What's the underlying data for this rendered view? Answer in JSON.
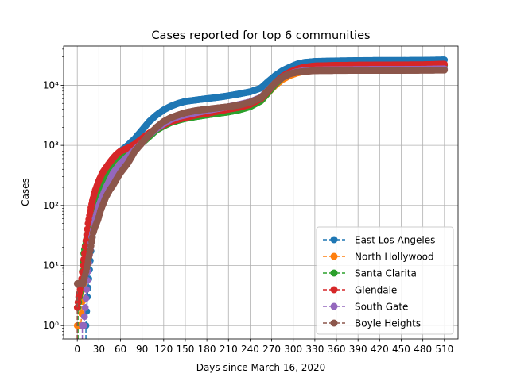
{
  "chart_data": {
    "type": "line",
    "title": "Cases reported for top 6 communities",
    "xlabel": "Days since March 16, 2020",
    "ylabel": "Cases",
    "xscale": "linear",
    "yscale": "log",
    "xlim": [
      -19,
      529
    ],
    "ylim": [
      0.6,
      45000
    ],
    "x_ticks": [
      0,
      30,
      60,
      90,
      120,
      150,
      180,
      210,
      240,
      270,
      300,
      330,
      360,
      390,
      420,
      450,
      480,
      510
    ],
    "x_tick_labels": [
      "0",
      "30",
      "60",
      "90",
      "120",
      "150",
      "180",
      "210",
      "240",
      "270",
      "300",
      "330",
      "360",
      "390",
      "420",
      "450",
      "480",
      "510"
    ],
    "y_ticks": [
      1,
      10,
      100,
      1000,
      10000
    ],
    "y_tick_labels": [
      "10⁰",
      "10¹",
      "10²",
      "10³",
      "10⁴"
    ],
    "grid": true,
    "legend_position": "lower-right",
    "series": [
      {
        "name": "East Los Angeles",
        "color": "#1f77b4",
        "start_day": 12,
        "points": [
          [
            12,
            1
          ],
          [
            14,
            3
          ],
          [
            16,
            6
          ],
          [
            18,
            12
          ],
          [
            20,
            25
          ],
          [
            25,
            60
          ],
          [
            30,
            140
          ],
          [
            40,
            350
          ],
          [
            50,
            600
          ],
          [
            60,
            800
          ],
          [
            70,
            1000
          ],
          [
            80,
            1300
          ],
          [
            90,
            1800
          ],
          [
            100,
            2500
          ],
          [
            110,
            3200
          ],
          [
            120,
            3900
          ],
          [
            130,
            4500
          ],
          [
            140,
            5000
          ],
          [
            150,
            5400
          ],
          [
            165,
            5700
          ],
          [
            180,
            6000
          ],
          [
            195,
            6300
          ],
          [
            210,
            6700
          ],
          [
            225,
            7200
          ],
          [
            240,
            7800
          ],
          [
            255,
            9000
          ],
          [
            265,
            11500
          ],
          [
            275,
            14500
          ],
          [
            285,
            17500
          ],
          [
            295,
            20000
          ],
          [
            305,
            22500
          ],
          [
            315,
            24000
          ],
          [
            330,
            25000
          ],
          [
            360,
            25500
          ],
          [
            390,
            25800
          ],
          [
            420,
            26000
          ],
          [
            450,
            26000
          ],
          [
            480,
            26100
          ],
          [
            510,
            26500
          ]
        ]
      },
      {
        "name": "North Hollywood",
        "color": "#ff7f0e",
        "start_day": 0,
        "points": [
          [
            0,
            1
          ],
          [
            5,
            1
          ],
          [
            8,
            4
          ],
          [
            12,
            10
          ],
          [
            16,
            22
          ],
          [
            20,
            40
          ],
          [
            25,
            70
          ],
          [
            30,
            130
          ],
          [
            40,
            250
          ],
          [
            50,
            420
          ],
          [
            60,
            600
          ],
          [
            70,
            800
          ],
          [
            80,
            1000
          ],
          [
            90,
            1300
          ],
          [
            100,
            1600
          ],
          [
            110,
            1900
          ],
          [
            120,
            2200
          ],
          [
            130,
            2500
          ],
          [
            140,
            2700
          ],
          [
            150,
            2900
          ],
          [
            165,
            3100
          ],
          [
            180,
            3300
          ],
          [
            195,
            3500
          ],
          [
            210,
            3700
          ],
          [
            225,
            4000
          ],
          [
            240,
            4500
          ],
          [
            255,
            5500
          ],
          [
            265,
            7500
          ],
          [
            275,
            10000
          ],
          [
            285,
            12500
          ],
          [
            295,
            14500
          ],
          [
            305,
            16000
          ],
          [
            315,
            17000
          ],
          [
            330,
            17800
          ],
          [
            360,
            18000
          ],
          [
            390,
            18100
          ],
          [
            420,
            18200
          ],
          [
            450,
            18200
          ],
          [
            480,
            18200
          ],
          [
            510,
            18300
          ]
        ]
      },
      {
        "name": "Santa Clarita",
        "color": "#2ca02c",
        "start_day": 1,
        "points": [
          [
            1,
            2
          ],
          [
            3,
            3
          ],
          [
            5,
            4
          ],
          [
            7,
            8
          ],
          [
            9,
            16
          ],
          [
            12,
            25
          ],
          [
            16,
            40
          ],
          [
            20,
            60
          ],
          [
            25,
            90
          ],
          [
            30,
            140
          ],
          [
            40,
            300
          ],
          [
            50,
            550
          ],
          [
            60,
            700
          ],
          [
            70,
            800
          ],
          [
            80,
            1000
          ],
          [
            90,
            1100
          ],
          [
            100,
            1400
          ],
          [
            110,
            1800
          ],
          [
            120,
            2100
          ],
          [
            130,
            2400
          ],
          [
            140,
            2600
          ],
          [
            150,
            2800
          ],
          [
            165,
            3000
          ],
          [
            180,
            3200
          ],
          [
            195,
            3400
          ],
          [
            210,
            3600
          ],
          [
            225,
            3900
          ],
          [
            240,
            4400
          ],
          [
            255,
            5500
          ],
          [
            265,
            7500
          ],
          [
            275,
            10500
          ],
          [
            285,
            13500
          ],
          [
            295,
            16000
          ],
          [
            305,
            18000
          ],
          [
            315,
            19500
          ],
          [
            330,
            20500
          ],
          [
            360,
            21000
          ],
          [
            390,
            21200
          ],
          [
            420,
            21300
          ],
          [
            450,
            21400
          ],
          [
            480,
            21500
          ],
          [
            510,
            21600
          ]
        ]
      },
      {
        "name": "Glendale",
        "color": "#d62728",
        "start_day": 0,
        "points": [
          [
            0,
            2
          ],
          [
            2,
            3
          ],
          [
            4,
            4
          ],
          [
            6,
            6
          ],
          [
            8,
            10
          ],
          [
            10,
            16
          ],
          [
            12,
            26
          ],
          [
            15,
            50
          ],
          [
            18,
            80
          ],
          [
            21,
            120
          ],
          [
            25,
            180
          ],
          [
            30,
            260
          ],
          [
            35,
            350
          ],
          [
            40,
            430
          ],
          [
            45,
            520
          ],
          [
            50,
            620
          ],
          [
            55,
            720
          ],
          [
            60,
            800
          ],
          [
            70,
            900
          ],
          [
            80,
            1050
          ],
          [
            90,
            1300
          ],
          [
            100,
            1600
          ],
          [
            110,
            1900
          ],
          [
            120,
            2200
          ],
          [
            130,
            2500
          ],
          [
            140,
            2700
          ],
          [
            150,
            2900
          ],
          [
            165,
            3200
          ],
          [
            180,
            3400
          ],
          [
            195,
            3700
          ],
          [
            210,
            4000
          ],
          [
            225,
            4300
          ],
          [
            240,
            4800
          ],
          [
            255,
            6000
          ],
          [
            265,
            8000
          ],
          [
            275,
            11000
          ],
          [
            285,
            14000
          ],
          [
            295,
            16500
          ],
          [
            305,
            18500
          ],
          [
            315,
            20000
          ],
          [
            330,
            21000
          ],
          [
            360,
            21500
          ],
          [
            390,
            21700
          ],
          [
            420,
            21800
          ],
          [
            450,
            21900
          ],
          [
            480,
            22000
          ],
          [
            510,
            22500
          ]
        ]
      },
      {
        "name": "South Gate",
        "color": "#9467bd",
        "start_day": 7,
        "points": [
          [
            7,
            1
          ],
          [
            9,
            1
          ],
          [
            11,
            2
          ],
          [
            13,
            4
          ],
          [
            15,
            8
          ],
          [
            17,
            15
          ],
          [
            20,
            30
          ],
          [
            25,
            60
          ],
          [
            30,
            100
          ],
          [
            40,
            200
          ],
          [
            50,
            350
          ],
          [
            60,
            500
          ],
          [
            70,
            650
          ],
          [
            80,
            850
          ],
          [
            90,
            1100
          ],
          [
            100,
            1500
          ],
          [
            110,
            1900
          ],
          [
            120,
            2300
          ],
          [
            130,
            2700
          ],
          [
            140,
            3000
          ],
          [
            150,
            3200
          ],
          [
            165,
            3500
          ],
          [
            180,
            3800
          ],
          [
            195,
            4100
          ],
          [
            210,
            4400
          ],
          [
            225,
            4800
          ],
          [
            240,
            5300
          ],
          [
            255,
            6300
          ],
          [
            265,
            8300
          ],
          [
            275,
            11000
          ],
          [
            285,
            13500
          ],
          [
            295,
            15500
          ],
          [
            305,
            16800
          ],
          [
            315,
            17500
          ],
          [
            330,
            18000
          ],
          [
            360,
            18200
          ],
          [
            390,
            18300
          ],
          [
            420,
            18400
          ],
          [
            450,
            18400
          ],
          [
            480,
            18500
          ],
          [
            510,
            18800
          ]
        ]
      },
      {
        "name": "Boyle Heights",
        "color": "#8c564b",
        "start_day": 0,
        "points": [
          [
            0,
            5
          ],
          [
            4,
            5
          ],
          [
            8,
            5
          ],
          [
            11,
            7
          ],
          [
            13,
            9
          ],
          [
            15,
            12
          ],
          [
            18,
            18
          ],
          [
            20,
            25
          ],
          [
            22,
            35
          ],
          [
            25,
            45
          ],
          [
            28,
            55
          ],
          [
            30,
            65
          ],
          [
            32,
            80
          ],
          [
            35,
            100
          ],
          [
            40,
            140
          ],
          [
            45,
            180
          ],
          [
            50,
            220
          ],
          [
            55,
            280
          ],
          [
            60,
            350
          ],
          [
            70,
            500
          ],
          [
            80,
            800
          ],
          [
            90,
            1100
          ],
          [
            100,
            1500
          ],
          [
            110,
            2000
          ],
          [
            120,
            2500
          ],
          [
            130,
            2900
          ],
          [
            140,
            3200
          ],
          [
            150,
            3500
          ],
          [
            165,
            3800
          ],
          [
            180,
            4000
          ],
          [
            195,
            4200
          ],
          [
            210,
            4400
          ],
          [
            225,
            4700
          ],
          [
            240,
            5200
          ],
          [
            255,
            6200
          ],
          [
            265,
            8200
          ],
          [
            275,
            11000
          ],
          [
            285,
            13500
          ],
          [
            295,
            15500
          ],
          [
            305,
            16500
          ],
          [
            315,
            17000
          ],
          [
            330,
            17500
          ],
          [
            360,
            17600
          ],
          [
            390,
            17700
          ],
          [
            420,
            17700
          ],
          [
            450,
            17700
          ],
          [
            480,
            17800
          ],
          [
            510,
            17900
          ]
        ]
      }
    ]
  }
}
